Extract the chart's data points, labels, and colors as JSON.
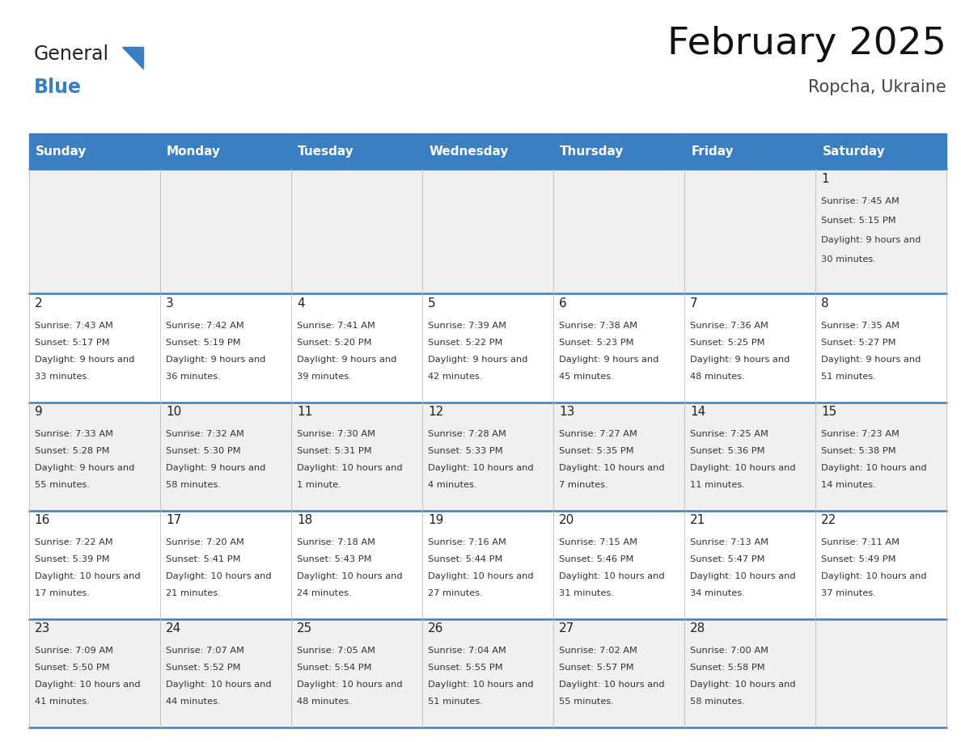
{
  "title": "February 2025",
  "subtitle": "Ropcha, Ukraine",
  "header_color": "#3a7fc1",
  "header_text_color": "#ffffff",
  "days_of_week": [
    "Sunday",
    "Monday",
    "Tuesday",
    "Wednesday",
    "Thursday",
    "Friday",
    "Saturday"
  ],
  "background_color": "#ffffff",
  "cell_bg_even": "#f0f0f0",
  "cell_bg_odd": "#ffffff",
  "border_color": "#3a7fc1",
  "text_color": "#333333",
  "logo_text1": "General",
  "logo_text2": "Blue",
  "logo_color1": "#222222",
  "logo_color2": "#3a7fc1",
  "calendar_data": [
    [
      null,
      null,
      null,
      null,
      null,
      null,
      {
        "day": 1,
        "sunrise": "7:45 AM",
        "sunset": "5:15 PM",
        "daylight": "9 hours and 30 minutes"
      }
    ],
    [
      {
        "day": 2,
        "sunrise": "7:43 AM",
        "sunset": "5:17 PM",
        "daylight": "9 hours and 33 minutes"
      },
      {
        "day": 3,
        "sunrise": "7:42 AM",
        "sunset": "5:19 PM",
        "daylight": "9 hours and 36 minutes"
      },
      {
        "day": 4,
        "sunrise": "7:41 AM",
        "sunset": "5:20 PM",
        "daylight": "9 hours and 39 minutes"
      },
      {
        "day": 5,
        "sunrise": "7:39 AM",
        "sunset": "5:22 PM",
        "daylight": "9 hours and 42 minutes"
      },
      {
        "day": 6,
        "sunrise": "7:38 AM",
        "sunset": "5:23 PM",
        "daylight": "9 hours and 45 minutes"
      },
      {
        "day": 7,
        "sunrise": "7:36 AM",
        "sunset": "5:25 PM",
        "daylight": "9 hours and 48 minutes"
      },
      {
        "day": 8,
        "sunrise": "7:35 AM",
        "sunset": "5:27 PM",
        "daylight": "9 hours and 51 minutes"
      }
    ],
    [
      {
        "day": 9,
        "sunrise": "7:33 AM",
        "sunset": "5:28 PM",
        "daylight": "9 hours and 55 minutes"
      },
      {
        "day": 10,
        "sunrise": "7:32 AM",
        "sunset": "5:30 PM",
        "daylight": "9 hours and 58 minutes"
      },
      {
        "day": 11,
        "sunrise": "7:30 AM",
        "sunset": "5:31 PM",
        "daylight": "10 hours and 1 minute"
      },
      {
        "day": 12,
        "sunrise": "7:28 AM",
        "sunset": "5:33 PM",
        "daylight": "10 hours and 4 minutes"
      },
      {
        "day": 13,
        "sunrise": "7:27 AM",
        "sunset": "5:35 PM",
        "daylight": "10 hours and 7 minutes"
      },
      {
        "day": 14,
        "sunrise": "7:25 AM",
        "sunset": "5:36 PM",
        "daylight": "10 hours and 11 minutes"
      },
      {
        "day": 15,
        "sunrise": "7:23 AM",
        "sunset": "5:38 PM",
        "daylight": "10 hours and 14 minutes"
      }
    ],
    [
      {
        "day": 16,
        "sunrise": "7:22 AM",
        "sunset": "5:39 PM",
        "daylight": "10 hours and 17 minutes"
      },
      {
        "day": 17,
        "sunrise": "7:20 AM",
        "sunset": "5:41 PM",
        "daylight": "10 hours and 21 minutes"
      },
      {
        "day": 18,
        "sunrise": "7:18 AM",
        "sunset": "5:43 PM",
        "daylight": "10 hours and 24 minutes"
      },
      {
        "day": 19,
        "sunrise": "7:16 AM",
        "sunset": "5:44 PM",
        "daylight": "10 hours and 27 minutes"
      },
      {
        "day": 20,
        "sunrise": "7:15 AM",
        "sunset": "5:46 PM",
        "daylight": "10 hours and 31 minutes"
      },
      {
        "day": 21,
        "sunrise": "7:13 AM",
        "sunset": "5:47 PM",
        "daylight": "10 hours and 34 minutes"
      },
      {
        "day": 22,
        "sunrise": "7:11 AM",
        "sunset": "5:49 PM",
        "daylight": "10 hours and 37 minutes"
      }
    ],
    [
      {
        "day": 23,
        "sunrise": "7:09 AM",
        "sunset": "5:50 PM",
        "daylight": "10 hours and 41 minutes"
      },
      {
        "day": 24,
        "sunrise": "7:07 AM",
        "sunset": "5:52 PM",
        "daylight": "10 hours and 44 minutes"
      },
      {
        "day": 25,
        "sunrise": "7:05 AM",
        "sunset": "5:54 PM",
        "daylight": "10 hours and 48 minutes"
      },
      {
        "day": 26,
        "sunrise": "7:04 AM",
        "sunset": "5:55 PM",
        "daylight": "10 hours and 51 minutes"
      },
      {
        "day": 27,
        "sunrise": "7:02 AM",
        "sunset": "5:57 PM",
        "daylight": "10 hours and 55 minutes"
      },
      {
        "day": 28,
        "sunrise": "7:00 AM",
        "sunset": "5:58 PM",
        "daylight": "10 hours and 58 minutes"
      },
      null
    ]
  ]
}
